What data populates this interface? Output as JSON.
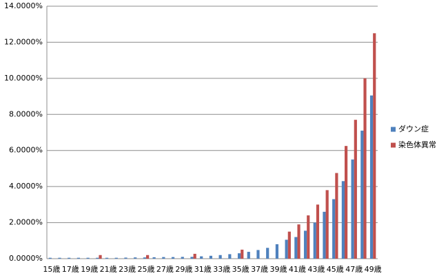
{
  "chart_data": {
    "type": "bar",
    "categories": [
      "15歳",
      null,
      "17歳",
      null,
      "19歳",
      null,
      "21歳",
      null,
      "23歳",
      null,
      "25歳",
      null,
      "27歳",
      null,
      "29歳",
      null,
      "31歳",
      null,
      "33歳",
      null,
      "35歳",
      null,
      "37歳",
      null,
      "39歳",
      null,
      "41歳",
      null,
      "43歳",
      null,
      "45歳",
      null,
      "47歳",
      null,
      "49歳"
    ],
    "series": [
      {
        "name": "ダウン症",
        "color": "#4f81bd",
        "values": [
          0.05,
          0.05,
          0.05,
          0.05,
          0.05,
          0.05,
          0.05,
          0.05,
          0.06,
          0.07,
          0.07,
          0.08,
          0.09,
          0.09,
          0.1,
          0.1,
          0.13,
          0.16,
          0.2,
          0.25,
          0.3,
          0.38,
          0.48,
          0.6,
          0.8,
          1.05,
          1.2,
          1.55,
          2.0,
          2.6,
          3.3,
          4.3,
          5.5,
          7.1,
          9.05
        ]
      },
      {
        "name": "染色体異常",
        "color": "#c0504d",
        "values": [
          null,
          null,
          null,
          null,
          null,
          0.2,
          null,
          null,
          null,
          null,
          0.2,
          null,
          null,
          null,
          null,
          0.27,
          null,
          null,
          null,
          null,
          0.5,
          null,
          null,
          null,
          null,
          1.5,
          1.9,
          2.4,
          3.0,
          3.8,
          4.75,
          6.25,
          7.7,
          10.0,
          12.5
        ]
      }
    ],
    "ylim": [
      0,
      14
    ],
    "yticks": [
      {
        "value": 0,
        "label": "0.0000%"
      },
      {
        "value": 2,
        "label": "2.0000%"
      },
      {
        "value": 4,
        "label": "4.0000%"
      },
      {
        "value": 6,
        "label": "6.0000%"
      },
      {
        "value": 8,
        "label": "8.0000%"
      },
      {
        "value": 10,
        "label": "10.0000%"
      },
      {
        "value": 12,
        "label": "12.0000%"
      },
      {
        "value": 14,
        "label": "14.0000%"
      }
    ],
    "grid": true,
    "legend": "right"
  }
}
